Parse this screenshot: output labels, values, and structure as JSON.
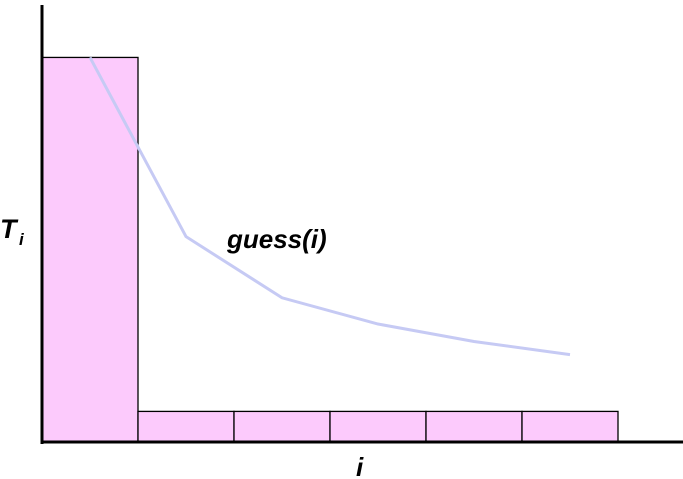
{
  "chart_data": {
    "type": "bar",
    "categories": [
      null,
      null,
      null,
      null,
      null,
      null
    ],
    "values": [
      88,
      7,
      7,
      7,
      7,
      7
    ],
    "color": "#fccafc",
    "line": {
      "name": "guess(i)",
      "color": "#c6caf4",
      "values": [
        88,
        47,
        33,
        27,
        23,
        20
      ]
    },
    "ylim": [
      0,
      100
    ],
    "y_label": "T",
    "y_label_subscript": "i",
    "x_label": "i"
  }
}
